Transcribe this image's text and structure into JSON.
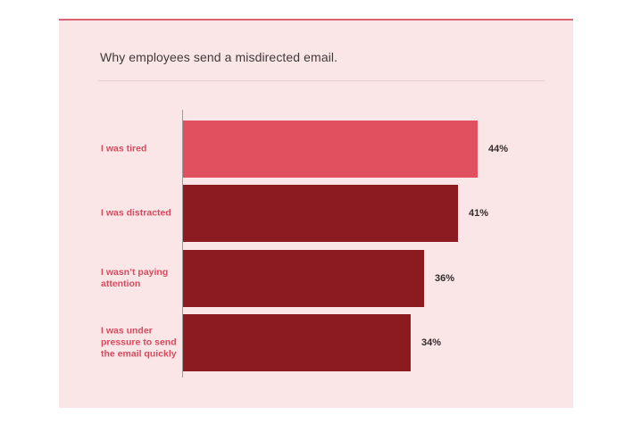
{
  "chart_data": {
    "type": "bar",
    "orientation": "horizontal",
    "title": "Why employees send a misdirected email.",
    "categories": [
      "I was tired",
      "I was distracted",
      "I wasn’t paying attention",
      "I was under pressure to send the email quickly"
    ],
    "values": [
      44,
      41,
      36,
      34
    ],
    "value_labels": [
      "44%",
      "41%",
      "36%",
      "34%"
    ],
    "xlabel": "",
    "ylabel": "",
    "xlim": [
      0,
      53
    ],
    "grid": false,
    "legend": false,
    "bar_colors": [
      "#e0505f",
      "#8b1a21",
      "#8b1a21",
      "#8b1a21"
    ],
    "colors": {
      "page_background": "#ffffff",
      "panel_background": "#fae5e7",
      "top_accent_line": "#dd6475",
      "highlight_bar": "#e0505f",
      "default_bar": "#8b1a21",
      "category_label": "#d64b5e",
      "value_label": "#352c2e",
      "title_text": "#3f3a3b",
      "axis_line": "#a2989a",
      "divider": "#e7cdd1"
    }
  }
}
